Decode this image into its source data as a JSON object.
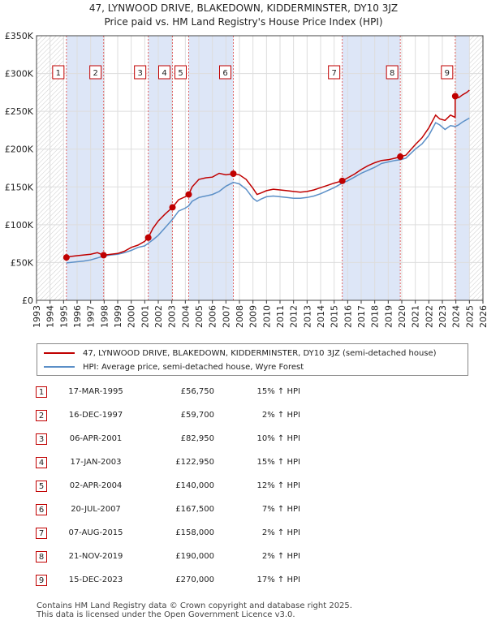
{
  "title": "47, LYNWOOD DRIVE, BLAKEDOWN, KIDDERMINSTER, DY10 3JZ",
  "subtitle": "Price paid vs. HM Land Registry's House Price Index (HPI)",
  "legend": {
    "red_label": "47, LYNWOOD DRIVE, BLAKEDOWN, KIDDERMINSTER, DY10 3JZ (semi-detached house)",
    "blue_label": "HPI: Average price, semi-detached house, Wyre Forest"
  },
  "colors": {
    "price_line": "#c00000",
    "hpi_line": "#5b8fc7",
    "band": "#dde6f7",
    "grid": "#dddddd"
  },
  "sales": [
    {
      "num": "1",
      "date": "17-MAR-1995",
      "price": "£56,750",
      "hpi": "15% ↑ HPI"
    },
    {
      "num": "2",
      "date": "16-DEC-1997",
      "price": "£59,700",
      "hpi": "2% ↑ HPI"
    },
    {
      "num": "3",
      "date": "06-APR-2001",
      "price": "£82,950",
      "hpi": "10% ↑ HPI"
    },
    {
      "num": "4",
      "date": "17-JAN-2003",
      "price": "£122,950",
      "hpi": "15% ↑ HPI"
    },
    {
      "num": "5",
      "date": "02-APR-2004",
      "price": "£140,000",
      "hpi": "12% ↑ HPI"
    },
    {
      "num": "6",
      "date": "20-JUL-2007",
      "price": "£167,500",
      "hpi": "7% ↑ HPI"
    },
    {
      "num": "7",
      "date": "07-AUG-2015",
      "price": "£158,000",
      "hpi": "2% ↑ HPI"
    },
    {
      "num": "8",
      "date": "21-NOV-2019",
      "price": "£190,000",
      "hpi": "2% ↑ HPI"
    },
    {
      "num": "9",
      "date": "15-DEC-2023",
      "price": "£270,000",
      "hpi": "17% ↑ HPI"
    }
  ],
  "footer": {
    "line1": "Contains HM Land Registry data © Crown copyright and database right 2025.",
    "line2": "This data is licensed under the Open Government Licence v3.0."
  },
  "chart_data": {
    "type": "line",
    "xlim": [
      1993,
      2026
    ],
    "ylim": [
      0,
      350000
    ],
    "x_ticks": [
      1993,
      1994,
      1995,
      1996,
      1997,
      1998,
      1999,
      2000,
      2001,
      2002,
      2003,
      2004,
      2005,
      2006,
      2007,
      2008,
      2009,
      2010,
      2011,
      2012,
      2013,
      2014,
      2015,
      2016,
      2017,
      2018,
      2019,
      2020,
      2021,
      2022,
      2023,
      2024,
      2025,
      2026
    ],
    "y_ticks": [
      {
        "value": 0,
        "label": "£0"
      },
      {
        "value": 50000,
        "label": "£50K"
      },
      {
        "value": 100000,
        "label": "£100K"
      },
      {
        "value": 150000,
        "label": "£150K"
      },
      {
        "value": 200000,
        "label": "£200K"
      },
      {
        "value": 250000,
        "label": "£250K"
      },
      {
        "value": 300000,
        "label": "£300K"
      },
      {
        "value": 350000,
        "label": "£350K"
      }
    ],
    "grid": true,
    "shaded_ranges": [
      [
        1995.21,
        1997.96
      ],
      [
        2001.26,
        2003.05
      ],
      [
        2004.25,
        2007.55
      ],
      [
        2015.6,
        2019.89
      ],
      [
        2023.95,
        2025.0
      ]
    ],
    "sales": [
      {
        "label": "1",
        "x": 1995.21,
        "y": 56750
      },
      {
        "label": "2",
        "x": 1997.96,
        "y": 59700
      },
      {
        "label": "3",
        "x": 2001.26,
        "y": 82950
      },
      {
        "label": "4",
        "x": 2003.05,
        "y": 122950
      },
      {
        "label": "5",
        "x": 2004.25,
        "y": 140000
      },
      {
        "label": "6",
        "x": 2007.55,
        "y": 167500
      },
      {
        "label": "7",
        "x": 2015.6,
        "y": 158000
      },
      {
        "label": "8",
        "x": 2019.89,
        "y": 190000
      },
      {
        "label": "9",
        "x": 2023.95,
        "y": 270000
      }
    ],
    "series": [
      {
        "name": "47, LYNWOOD DRIVE, BLAKEDOWN, KIDDERMINSTER, DY10 3JZ (semi-detached house)",
        "x": [
          1995.21,
          1995.5,
          1996,
          1996.5,
          1997,
          1997.5,
          1997.96,
          1998.5,
          1999,
          1999.5,
          2000,
          2000.5,
          2001,
          2001.26,
          2001.6,
          2002,
          2002.5,
          2003.05,
          2003.5,
          2004,
          2004.25,
          2004.5,
          2005,
          2005.5,
          2006,
          2006.5,
          2007,
          2007.55,
          2008,
          2008.5,
          2009,
          2009.3,
          2009.6,
          2010,
          2010.5,
          2011,
          2011.5,
          2012,
          2012.5,
          2013,
          2013.5,
          2014,
          2014.5,
          2015,
          2015.6,
          2016,
          2016.5,
          2017,
          2017.5,
          2018,
          2018.5,
          2019,
          2019.5,
          2019.89,
          2020.3,
          2020.7,
          2021,
          2021.5,
          2022,
          2022.5,
          2022.8,
          2023.2,
          2023.6,
          2023.94,
          2023.95,
          2024.2,
          2024.5,
          2024.8,
          2025.0
        ],
        "y": [
          56750,
          58000,
          59000,
          60000,
          61000,
          63000,
          59700,
          61000,
          62000,
          65000,
          70000,
          73000,
          78000,
          82950,
          95000,
          105000,
          114000,
          122950,
          133000,
          137000,
          140000,
          150000,
          160000,
          162000,
          163000,
          168000,
          166000,
          167500,
          166000,
          160000,
          148000,
          140000,
          142000,
          145000,
          147000,
          146000,
          145000,
          144000,
          143000,
          144000,
          146000,
          149000,
          152000,
          155000,
          158000,
          162000,
          167000,
          173000,
          178000,
          182000,
          185000,
          186000,
          188000,
          190000,
          192000,
          200000,
          206000,
          215000,
          228000,
          245000,
          240000,
          238000,
          245000,
          242000,
          270000,
          268000,
          272000,
          275000,
          278000
        ]
      },
      {
        "name": "HPI: Average price, semi-detached house, Wyre Forest",
        "x": [
          1995.21,
          1995.5,
          1996,
          1996.5,
          1997,
          1997.5,
          1997.96,
          1998.5,
          1999,
          1999.5,
          2000,
          2000.5,
          2001,
          2001.26,
          2001.6,
          2002,
          2002.5,
          2003.05,
          2003.5,
          2004,
          2004.25,
          2004.5,
          2005,
          2005.5,
          2006,
          2006.5,
          2007,
          2007.55,
          2008,
          2008.5,
          2009,
          2009.3,
          2009.6,
          2010,
          2010.5,
          2011,
          2011.5,
          2012,
          2012.5,
          2013,
          2013.5,
          2014,
          2014.5,
          2015,
          2015.6,
          2016,
          2016.5,
          2017,
          2017.5,
          2018,
          2018.5,
          2019,
          2019.5,
          2019.89,
          2020.3,
          2020.7,
          2021,
          2021.5,
          2022,
          2022.5,
          2022.8,
          2023.2,
          2023.6,
          2023.95,
          2024.2,
          2024.5,
          2024.8,
          2025.0
        ],
        "y": [
          49500,
          50000,
          51000,
          52000,
          53500,
          56000,
          58500,
          60000,
          61000,
          63000,
          66000,
          70000,
          72000,
          75500,
          80000,
          86000,
          96000,
          107000,
          118000,
          122000,
          125000,
          131000,
          136000,
          138000,
          140000,
          144000,
          151000,
          156000,
          154000,
          147000,
          135000,
          131000,
          134000,
          137000,
          138000,
          137000,
          136000,
          135000,
          135000,
          136000,
          138000,
          141000,
          145000,
          149000,
          155000,
          158000,
          163000,
          168000,
          172000,
          176000,
          181000,
          183000,
          185000,
          186000,
          188000,
          195000,
          200000,
          207000,
          218000,
          235000,
          232000,
          226000,
          231000,
          230000,
          232000,
          236000,
          239000,
          241000
        ]
      }
    ]
  }
}
